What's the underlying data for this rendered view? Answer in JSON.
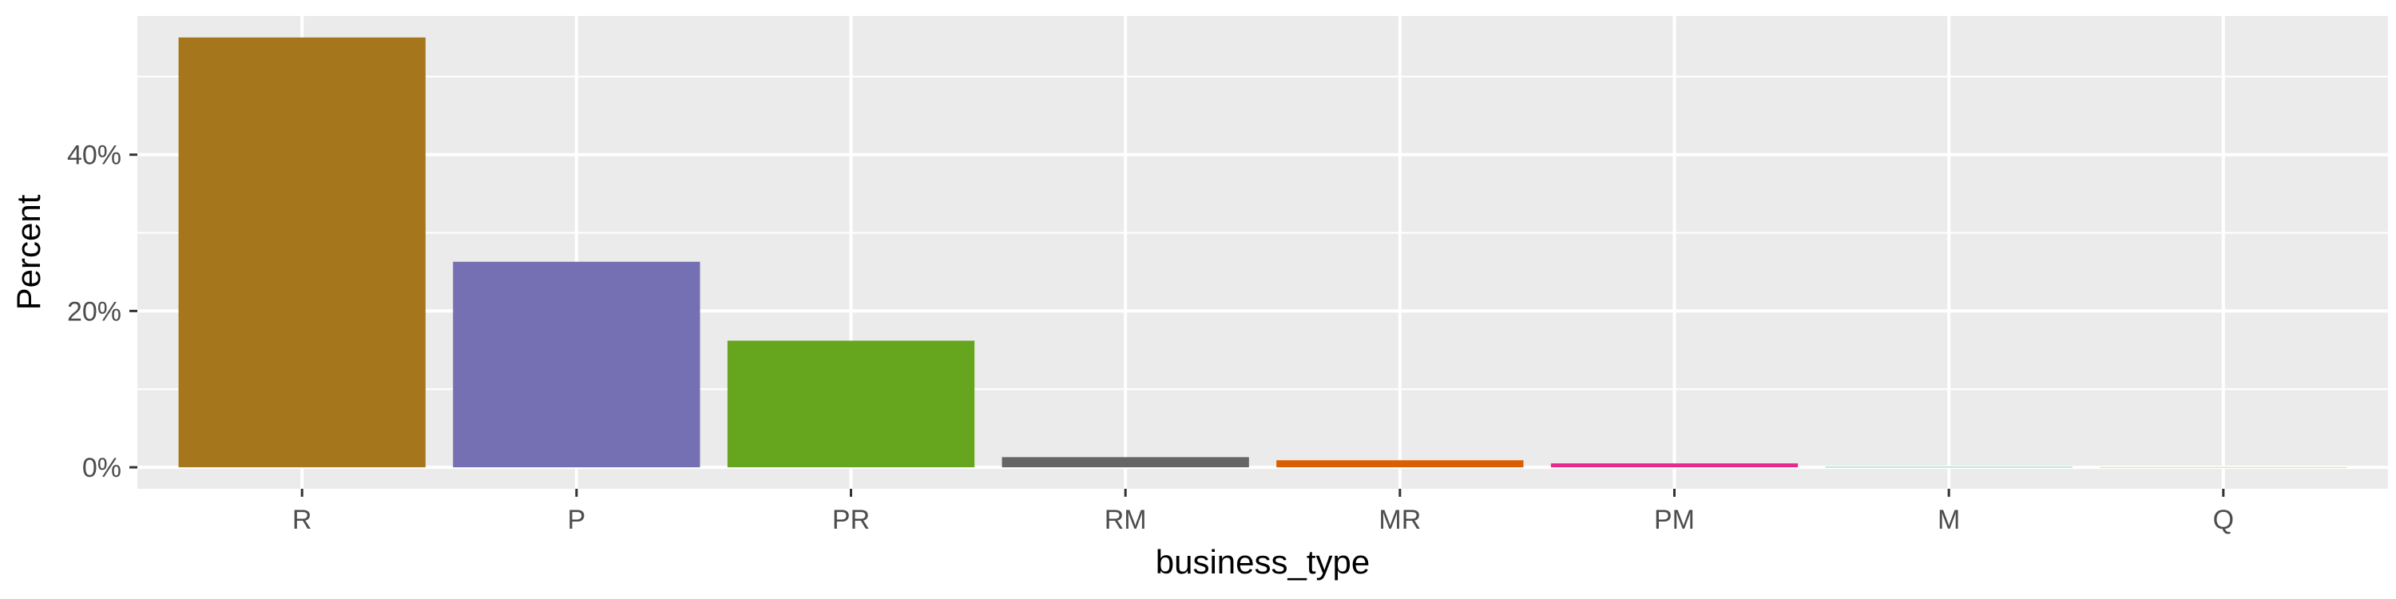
{
  "chart_data": {
    "type": "bar",
    "categories": [
      "R",
      "P",
      "PR",
      "RM",
      "MR",
      "PM",
      "M",
      "Q"
    ],
    "values": [
      55.0,
      26.3,
      16.2,
      1.3,
      0.9,
      0.5,
      0.04,
      0.02
    ],
    "colors": [
      "#a6761d",
      "#7570b3",
      "#66a61e",
      "#666666",
      "#d95f02",
      "#e7298a",
      "#1b9e77",
      "#e6ab02"
    ],
    "xlabel": "business_type",
    "ylabel": "Percent",
    "ylim": [
      -2.75,
      57.75
    ],
    "y_ticks": [
      0,
      20,
      40
    ],
    "y_tick_labels": [
      "0%",
      "20%",
      "40%"
    ],
    "grid": true,
    "panel_background": "#ebebeb",
    "grid_color": "#ffffff"
  }
}
